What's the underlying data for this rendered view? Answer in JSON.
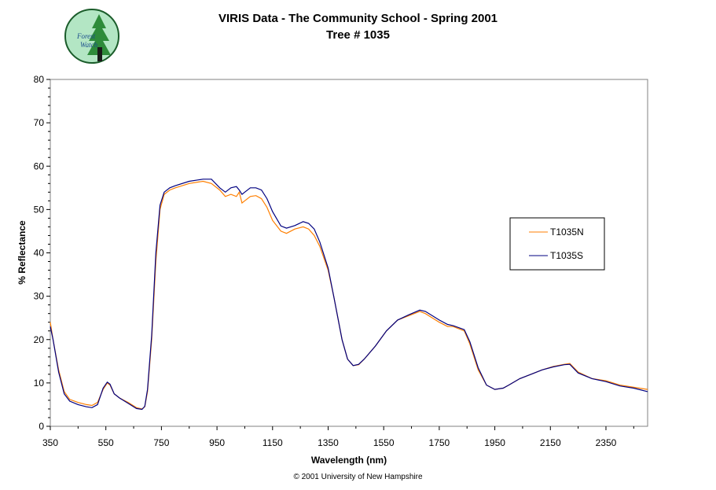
{
  "logo": {
    "text_line1": "Forest",
    "text_line2": "Watch",
    "icon": "forest-watch-logo"
  },
  "title_line1": "VIRIS Data - The Community School - Spring 2001",
  "title_line2": "Tree # 1035",
  "copyright": "© 2001 University of New Hampshire",
  "colors": {
    "T1035N": "#ff7f00",
    "T1035S": "#000080",
    "axis": "#808080"
  },
  "chart_data": {
    "type": "line",
    "title": "VIRIS Data - The Community School - Spring 2001",
    "subtitle": "Tree # 1035",
    "xlabel": "Wavelength (nm)",
    "ylabel": "% Reflectance",
    "xlim": [
      350,
      2500
    ],
    "ylim": [
      0,
      80
    ],
    "x_ticks": [
      "350",
      "550",
      "750",
      "950",
      "1150",
      "1350",
      "1550",
      "1750",
      "1950",
      "2150",
      "2350"
    ],
    "y_ticks": [
      "0",
      "10",
      "20",
      "30",
      "40",
      "50",
      "60",
      "70",
      "80"
    ],
    "grid": false,
    "legend_position": "right",
    "series": [
      {
        "name": "T1035N",
        "color": "#ff7f00",
        "points": [
          [
            350,
            24
          ],
          [
            360,
            20
          ],
          [
            380,
            13
          ],
          [
            400,
            8
          ],
          [
            420,
            6.2
          ],
          [
            450,
            5.5
          ],
          [
            480,
            5
          ],
          [
            500,
            4.8
          ],
          [
            520,
            5.5
          ],
          [
            540,
            8.5
          ],
          [
            555,
            10
          ],
          [
            565,
            9.5
          ],
          [
            580,
            7.5
          ],
          [
            600,
            6.5
          ],
          [
            630,
            5.5
          ],
          [
            660,
            4.3
          ],
          [
            680,
            4
          ],
          [
            690,
            4.5
          ],
          [
            700,
            8
          ],
          [
            715,
            20
          ],
          [
            730,
            38
          ],
          [
            745,
            50
          ],
          [
            760,
            53.5
          ],
          [
            780,
            54.5
          ],
          [
            800,
            55
          ],
          [
            850,
            56
          ],
          [
            900,
            56.5
          ],
          [
            930,
            56
          ],
          [
            960,
            54.5
          ],
          [
            980,
            53
          ],
          [
            1000,
            53.5
          ],
          [
            1020,
            53
          ],
          [
            1030,
            54
          ],
          [
            1040,
            51.5
          ],
          [
            1050,
            52
          ],
          [
            1070,
            53
          ],
          [
            1090,
            53.2
          ],
          [
            1110,
            52.5
          ],
          [
            1130,
            50.5
          ],
          [
            1150,
            47.5
          ],
          [
            1180,
            45
          ],
          [
            1200,
            44.5
          ],
          [
            1230,
            45.5
          ],
          [
            1260,
            46
          ],
          [
            1280,
            45.5
          ],
          [
            1300,
            44
          ],
          [
            1320,
            41.5
          ],
          [
            1350,
            36
          ],
          [
            1370,
            30
          ],
          [
            1400,
            20
          ],
          [
            1420,
            15.5
          ],
          [
            1440,
            14
          ],
          [
            1460,
            14.2
          ],
          [
            1480,
            15.5
          ],
          [
            1520,
            18.5
          ],
          [
            1560,
            22
          ],
          [
            1600,
            24.5
          ],
          [
            1640,
            25.5
          ],
          [
            1680,
            26.5
          ],
          [
            1700,
            26
          ],
          [
            1750,
            24
          ],
          [
            1780,
            23
          ],
          [
            1800,
            23
          ],
          [
            1840,
            22
          ],
          [
            1860,
            19
          ],
          [
            1890,
            13
          ],
          [
            1920,
            9.5
          ],
          [
            1950,
            8.5
          ],
          [
            1980,
            8.8
          ],
          [
            2000,
            9.5
          ],
          [
            2040,
            11
          ],
          [
            2080,
            12
          ],
          [
            2120,
            13
          ],
          [
            2160,
            13.8
          ],
          [
            2200,
            14.3
          ],
          [
            2220,
            14.5
          ],
          [
            2250,
            12.5
          ],
          [
            2300,
            11
          ],
          [
            2350,
            10.5
          ],
          [
            2400,
            9.5
          ],
          [
            2450,
            9
          ],
          [
            2500,
            8.5
          ]
        ]
      },
      {
        "name": "T1035S",
        "color": "#000080",
        "points": [
          [
            350,
            23
          ],
          [
            360,
            20
          ],
          [
            380,
            12.5
          ],
          [
            400,
            7.5
          ],
          [
            420,
            5.8
          ],
          [
            450,
            5
          ],
          [
            480,
            4.5
          ],
          [
            500,
            4.3
          ],
          [
            520,
            5
          ],
          [
            540,
            8.8
          ],
          [
            555,
            10.2
          ],
          [
            565,
            9.7
          ],
          [
            580,
            7.5
          ],
          [
            600,
            6.5
          ],
          [
            630,
            5.3
          ],
          [
            660,
            4.1
          ],
          [
            680,
            3.9
          ],
          [
            690,
            4.6
          ],
          [
            700,
            8.5
          ],
          [
            715,
            21
          ],
          [
            730,
            40
          ],
          [
            745,
            51
          ],
          [
            760,
            54
          ],
          [
            780,
            55
          ],
          [
            800,
            55.5
          ],
          [
            850,
            56.5
          ],
          [
            900,
            57
          ],
          [
            930,
            57
          ],
          [
            960,
            55
          ],
          [
            980,
            54
          ],
          [
            1000,
            55
          ],
          [
            1020,
            55.3
          ],
          [
            1030,
            54.5
          ],
          [
            1040,
            53.5
          ],
          [
            1050,
            54
          ],
          [
            1070,
            55
          ],
          [
            1090,
            55
          ],
          [
            1110,
            54.5
          ],
          [
            1130,
            52.5
          ],
          [
            1150,
            49.5
          ],
          [
            1180,
            46.2
          ],
          [
            1200,
            45.7
          ],
          [
            1230,
            46.3
          ],
          [
            1260,
            47.2
          ],
          [
            1280,
            46.8
          ],
          [
            1300,
            45.5
          ],
          [
            1320,
            42.5
          ],
          [
            1350,
            36.5
          ],
          [
            1370,
            30
          ],
          [
            1400,
            20
          ],
          [
            1420,
            15.5
          ],
          [
            1440,
            14
          ],
          [
            1460,
            14.3
          ],
          [
            1480,
            15.5
          ],
          [
            1520,
            18.5
          ],
          [
            1560,
            22
          ],
          [
            1600,
            24.5
          ],
          [
            1640,
            25.7
          ],
          [
            1680,
            26.8
          ],
          [
            1700,
            26.5
          ],
          [
            1750,
            24.5
          ],
          [
            1780,
            23.5
          ],
          [
            1800,
            23.2
          ],
          [
            1840,
            22.3
          ],
          [
            1860,
            19.5
          ],
          [
            1890,
            13.5
          ],
          [
            1920,
            9.5
          ],
          [
            1950,
            8.5
          ],
          [
            1980,
            8.8
          ],
          [
            2000,
            9.5
          ],
          [
            2040,
            11
          ],
          [
            2080,
            12
          ],
          [
            2120,
            13
          ],
          [
            2160,
            13.7
          ],
          [
            2200,
            14.2
          ],
          [
            2220,
            14.3
          ],
          [
            2250,
            12.3
          ],
          [
            2300,
            11
          ],
          [
            2350,
            10.3
          ],
          [
            2400,
            9.3
          ],
          [
            2450,
            8.8
          ],
          [
            2500,
            8
          ]
        ]
      }
    ]
  }
}
